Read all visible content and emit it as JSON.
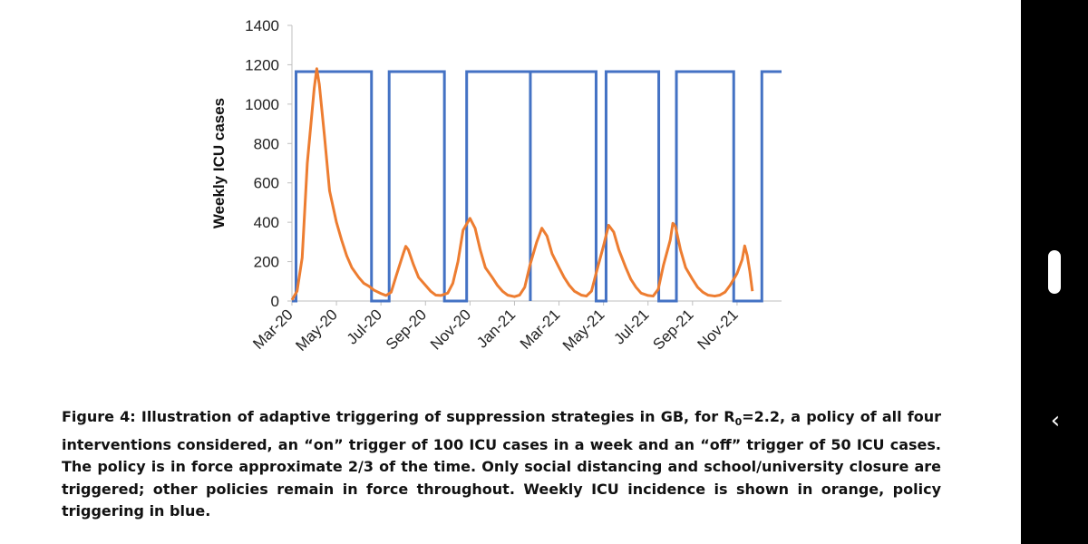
{
  "chart_data": {
    "type": "line",
    "title": "",
    "ylabel": "Weekly ICU cases",
    "xlabel": "",
    "ylim": [
      0,
      1400
    ],
    "yticks": [
      0,
      200,
      400,
      600,
      800,
      1000,
      1200,
      1400
    ],
    "x_range_months": [
      "Mar-20",
      "Jan-22"
    ],
    "xtick_labels": [
      "Mar-20",
      "May-20",
      "Jul-20",
      "Sep-20",
      "Nov-20",
      "Jan-21",
      "Mar-21",
      "May-21",
      "Jul-21",
      "Sep-21",
      "Nov-21"
    ],
    "grid": false,
    "legend": "none",
    "series": [
      {
        "color": "#4472C4",
        "style": "step",
        "level_on": 1165,
        "level_off": 0,
        "on_intervals": [
          [
            "Mar-20",
            0.8,
            "Jun-20",
            2.5
          ],
          [
            "Jul-20",
            1.6,
            "Sep-20",
            3.7
          ],
          [
            "Oct-20",
            3.7,
            "Jan-21",
            3.1
          ],
          [
            "Jan-21",
            3.1,
            "Apr-21",
            2.9
          ],
          [
            "May-21",
            0.5,
            "Jul-21",
            2.1
          ],
          [
            "Aug-21",
            1.2,
            "Oct-21",
            3.7
          ],
          [
            "Dec-21",
            0.5,
            "Jan-22",
            0
          ]
        ]
      },
      {
        "color": "#ED7D31",
        "style": "line",
        "points": [
          [
            "Mar-20",
            0.0,
            5
          ],
          [
            "Mar-20",
            1.0,
            50
          ],
          [
            "Mar-20",
            2.0,
            220
          ],
          [
            "Mar-20",
            3.0,
            700
          ],
          [
            "Apr-20",
            0.0,
            1080
          ],
          [
            "Apr-20",
            0.5,
            1180
          ],
          [
            "Apr-20",
            1.0,
            1100
          ],
          [
            "Apr-20",
            2.0,
            840
          ],
          [
            "Apr-20",
            3.0,
            560
          ],
          [
            "May-20",
            0.0,
            400
          ],
          [
            "May-20",
            1.0,
            310
          ],
          [
            "May-20",
            2.0,
            230
          ],
          [
            "May-20",
            3.0,
            170
          ],
          [
            "Jun-20",
            0.0,
            120
          ],
          [
            "Jun-20",
            1.0,
            90
          ],
          [
            "Jun-20",
            2.0,
            75
          ],
          [
            "Jun-20",
            3.0,
            55
          ],
          [
            "Jul-20",
            0.0,
            38
          ],
          [
            "Jul-20",
            1.0,
            28
          ],
          [
            "Jul-20",
            2.0,
            45
          ],
          [
            "Jul-20",
            3.0,
            130
          ],
          [
            "Aug-20",
            0.0,
            240
          ],
          [
            "Aug-20",
            0.5,
            278
          ],
          [
            "Aug-20",
            1.0,
            260
          ],
          [
            "Aug-20",
            2.0,
            185
          ],
          [
            "Aug-20",
            3.0,
            120
          ],
          [
            "Sep-20",
            0.0,
            80
          ],
          [
            "Sep-20",
            1.0,
            50
          ],
          [
            "Sep-20",
            2.0,
            30
          ],
          [
            "Sep-20",
            3.0,
            28
          ],
          [
            "Oct-20",
            0.0,
            40
          ],
          [
            "Oct-20",
            1.0,
            90
          ],
          [
            "Oct-20",
            2.0,
            200
          ],
          [
            "Oct-20",
            3.0,
            360
          ],
          [
            "Nov-20",
            0.0,
            420
          ],
          [
            "Nov-20",
            1.0,
            370
          ],
          [
            "Nov-20",
            2.0,
            260
          ],
          [
            "Nov-20",
            3.0,
            170
          ],
          [
            "Dec-20",
            0.0,
            120
          ],
          [
            "Dec-20",
            1.0,
            80
          ],
          [
            "Dec-20",
            2.0,
            50
          ],
          [
            "Dec-20",
            3.0,
            30
          ],
          [
            "Jan-21",
            0.0,
            22
          ],
          [
            "Jan-21",
            1.0,
            30
          ],
          [
            "Jan-21",
            2.0,
            70
          ],
          [
            "Jan-21",
            3.0,
            180
          ],
          [
            "Feb-21",
            0.0,
            300
          ],
          [
            "Feb-21",
            1.0,
            370
          ],
          [
            "Feb-21",
            2.0,
            330
          ],
          [
            "Feb-21",
            3.0,
            240
          ],
          [
            "Mar-21",
            0.0,
            170
          ],
          [
            "Mar-21",
            1.0,
            120
          ],
          [
            "Mar-21",
            2.0,
            80
          ],
          [
            "Mar-21",
            3.0,
            50
          ],
          [
            "Apr-21",
            0.0,
            30
          ],
          [
            "Apr-21",
            1.0,
            25
          ],
          [
            "Apr-21",
            2.0,
            50
          ],
          [
            "Apr-21",
            3.0,
            150
          ],
          [
            "May-21",
            0.0,
            280
          ],
          [
            "May-21",
            1.0,
            385
          ],
          [
            "May-21",
            2.0,
            350
          ],
          [
            "May-21",
            3.0,
            260
          ],
          [
            "Jun-21",
            0.0,
            170
          ],
          [
            "Jun-21",
            1.0,
            110
          ],
          [
            "Jun-21",
            2.0,
            70
          ],
          [
            "Jun-21",
            3.0,
            40
          ],
          [
            "Jul-21",
            0.0,
            28
          ],
          [
            "Jul-21",
            1.0,
            25
          ],
          [
            "Jul-21",
            2.0,
            60
          ],
          [
            "Jul-21",
            3.0,
            180
          ],
          [
            "Aug-21",
            0.0,
            310
          ],
          [
            "Aug-21",
            0.5,
            395
          ],
          [
            "Aug-21",
            1.0,
            380
          ],
          [
            "Aug-21",
            2.0,
            260
          ],
          [
            "Aug-21",
            3.0,
            170
          ],
          [
            "Sep-21",
            0.0,
            110
          ],
          [
            "Sep-21",
            1.0,
            70
          ],
          [
            "Sep-21",
            2.0,
            45
          ],
          [
            "Sep-21",
            3.0,
            30
          ],
          [
            "Oct-21",
            0.0,
            25
          ],
          [
            "Oct-21",
            1.0,
            30
          ],
          [
            "Oct-21",
            2.0,
            45
          ],
          [
            "Oct-21",
            3.0,
            80
          ],
          [
            "Nov-21",
            0.0,
            140
          ],
          [
            "Nov-21",
            1.0,
            210
          ],
          [
            "Nov-21",
            1.5,
            280
          ],
          [
            "Nov-21",
            2.0,
            230
          ],
          [
            "Nov-21",
            2.5,
            150
          ],
          [
            "Nov-21",
            3.0,
            50
          ]
        ]
      }
    ]
  },
  "caption": {
    "text_runs": [
      {
        "text": "Figure 4: Illustration of adaptive triggering of suppression strategies in GB, for R"
      },
      {
        "text": "0",
        "sub": true
      },
      {
        "text": "=2.2, a policy of all four interventions considered, an “on” trigger of 100 ICU cases in a week and an “off” trigger of 50 ICU cases.  The policy is in force approximate 2/3 of the time. Only social distancing and school/university closure are triggered; other policies remain in force throughout. Weekly ICU incidence is shown in orange, policy triggering in blue."
      }
    ]
  },
  "side_panel": {
    "color": "#000000",
    "handle_icon": "pill-handle-icon",
    "back_icon": "chevron-left-icon",
    "back_glyph": "‹"
  }
}
